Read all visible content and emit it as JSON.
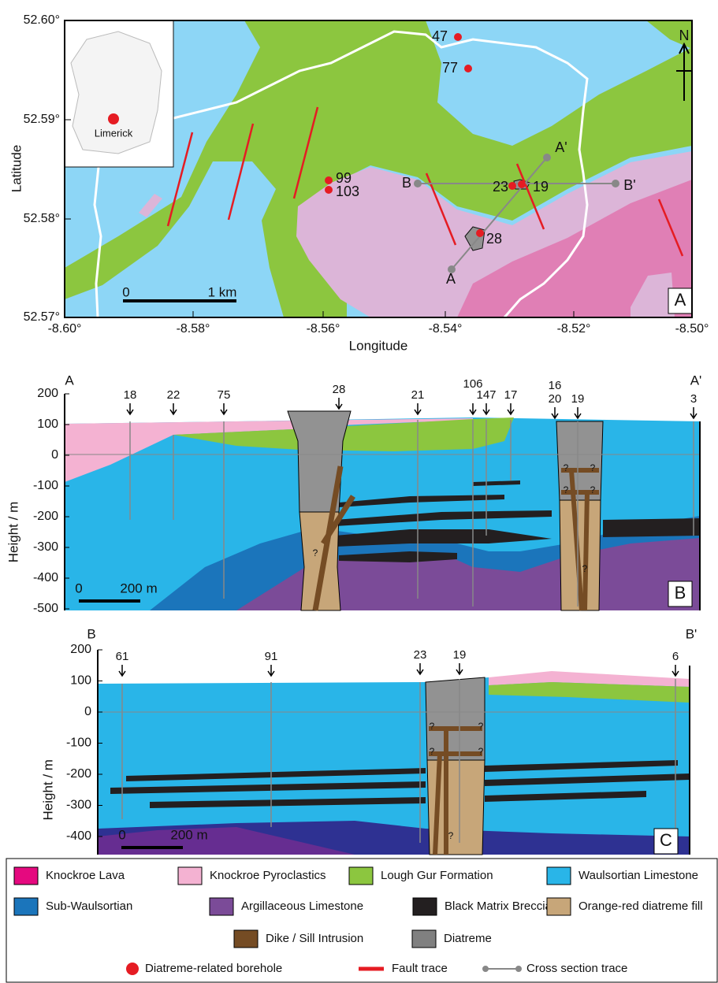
{
  "map": {
    "y_axis_label": "Latitude",
    "x_axis_label": "Longitude",
    "y_ticks": [
      "52.60°",
      "52.59°",
      "52.58°",
      "52.57°"
    ],
    "x_ticks": [
      "-8.60°",
      "-8.58°",
      "-8.56°",
      "-8.54°",
      "-8.52°",
      "-8.50°"
    ],
    "inset_label": "Limerick",
    "north": "N",
    "panel": "A",
    "scale": [
      "0",
      "1 km"
    ],
    "boreholes": [
      "47",
      "77",
      "99",
      "103",
      "23",
      "19",
      "28"
    ],
    "section_ends": [
      "A",
      "A'",
      "B",
      "B'"
    ]
  },
  "section_a": {
    "y_axis_label": "Height / m",
    "y_ticks": [
      "200",
      "100",
      "0",
      "-100",
      "-200",
      "-300",
      "-400",
      "-500"
    ],
    "ends": [
      "A",
      "A'"
    ],
    "boreholes": [
      "18",
      "22",
      "75",
      "28",
      "21",
      "106",
      "147",
      "17",
      "16",
      "20",
      "19",
      "3"
    ],
    "scale": [
      "0",
      "200 m"
    ],
    "panel": "B",
    "uncertain": "?"
  },
  "section_b": {
    "y_axis_label": "Height / m",
    "y_ticks": [
      "200",
      "100",
      "0",
      "-100",
      "-200",
      "-300",
      "-400"
    ],
    "ends": [
      "B",
      "B'"
    ],
    "boreholes": [
      "61",
      "91",
      "23",
      "19",
      "6"
    ],
    "scale": [
      "0",
      "200 m"
    ],
    "panel": "C",
    "uncertain": "?"
  },
  "legend": {
    "units": [
      {
        "label": "Knockroe Lava",
        "color": "#e5097f"
      },
      {
        "label": "Knockroe Pyroclastics",
        "color": "#f4b2d2"
      },
      {
        "label": "Lough Gur Formation",
        "color": "#8cc63f"
      },
      {
        "label": "Waulsortian Limestone",
        "color": "#29b5e8"
      },
      {
        "label": "Sub-Waulsortian",
        "color": "#1b75bb"
      },
      {
        "label": "Argillaceous Limestone",
        "color": "#7b4b98"
      },
      {
        "label": "Black Matrix Breccia",
        "color": "#231f20"
      },
      {
        "label": "Orange-red diatreme fill",
        "color": "#c7a679"
      },
      {
        "label": "Dike / Sill Intrusion",
        "color": "#754c24"
      },
      {
        "label": "Diatreme",
        "color": "#808080"
      }
    ],
    "symbols": [
      "Diatreme-related borehole",
      "Fault trace",
      "Cross section trace"
    ]
  }
}
